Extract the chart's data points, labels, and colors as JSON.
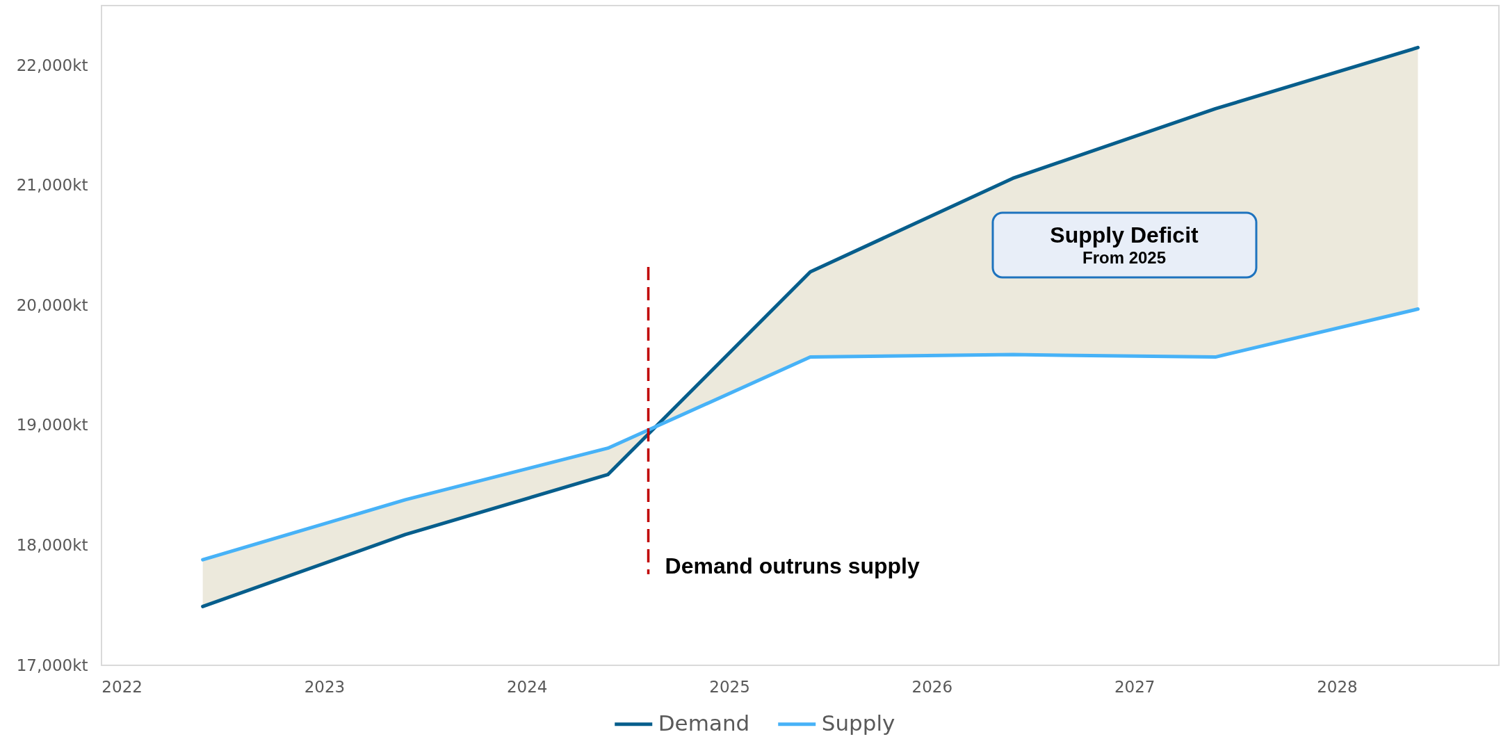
{
  "chart_data": {
    "type": "line",
    "x": [
      2022.4,
      2023.4,
      2024.4,
      2025.4,
      2026.4,
      2027.4,
      2028.4
    ],
    "series": [
      {
        "name": "Demand",
        "color": "#075e8c",
        "values": [
          17490,
          18090,
          18590,
          20280,
          21060,
          21640,
          22150
        ]
      },
      {
        "name": "Supply",
        "color": "#47b2f7",
        "values": [
          17880,
          18380,
          18810,
          19570,
          19590,
          19570,
          19970
        ]
      },
      {
        "type": "area",
        "color": "#ece9dc",
        "values": [
          null,
          null,
          null,
          null,
          null,
          null,
          null
        ],
        "lower": [
          17880,
          18380,
          18810,
          19570,
          19590,
          19570,
          19970
        ],
        "upper": [
          17490,
          18090,
          18590,
          20280,
          21060,
          21640,
          22150
        ]
      }
    ],
    "xlim": [
      2021.9,
      2028.8
    ],
    "xticks": [
      2022,
      2023,
      2024,
      2025,
      2026,
      2027,
      2028
    ],
    "ylim": [
      17000,
      22500
    ],
    "yticks": [
      {
        "value": 17000,
        "label": "17,000kt"
      },
      {
        "value": 18000,
        "label": "18,000kt"
      },
      {
        "value": 19000,
        "label": "19,000kt"
      },
      {
        "value": 20000,
        "label": "20,000kt"
      },
      {
        "value": 21000,
        "label": "21,000kt"
      },
      {
        "value": 22000,
        "label": "22,000kt"
      }
    ],
    "ref_lines": [
      {
        "axis": "x",
        "value": 2024.6,
        "label": "Demand outruns supply",
        "color": "#c00000",
        "line_style": "dashed"
      }
    ],
    "annotations": [
      "Supply Deficit",
      "From 2025"
    ],
    "legend": "bottom"
  }
}
